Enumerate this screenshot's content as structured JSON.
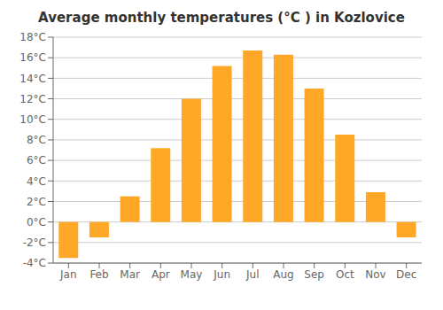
{
  "chart_data": {
    "type": "bar",
    "title": "Average monthly temperatures (°C ) in Kozlovice",
    "categories": [
      "Jan",
      "Feb",
      "Mar",
      "Apr",
      "May",
      "Jun",
      "Jul",
      "Aug",
      "Sep",
      "Oct",
      "Nov",
      "Dec"
    ],
    "values": [
      -3.5,
      -1.5,
      2.5,
      7.2,
      12.0,
      15.2,
      16.7,
      16.3,
      13.0,
      8.5,
      2.9,
      -1.5
    ],
    "color": "#FFA726",
    "ylim": [
      -4,
      18
    ],
    "yticks": [
      {
        "value": -4,
        "label": "-4°C"
      },
      {
        "value": -2,
        "label": "-2°C"
      },
      {
        "value": 0,
        "label": "0°C"
      },
      {
        "value": 2,
        "label": "2°C"
      },
      {
        "value": 4,
        "label": "4°C"
      },
      {
        "value": 6,
        "label": "6°C"
      },
      {
        "value": 8,
        "label": "8°C"
      },
      {
        "value": 10,
        "label": "10°C"
      },
      {
        "value": 12,
        "label": "12°C"
      },
      {
        "value": 14,
        "label": "14°C"
      },
      {
        "value": 16,
        "label": "16°C"
      },
      {
        "value": 18,
        "label": "18°C"
      }
    ],
    "grid": true
  }
}
